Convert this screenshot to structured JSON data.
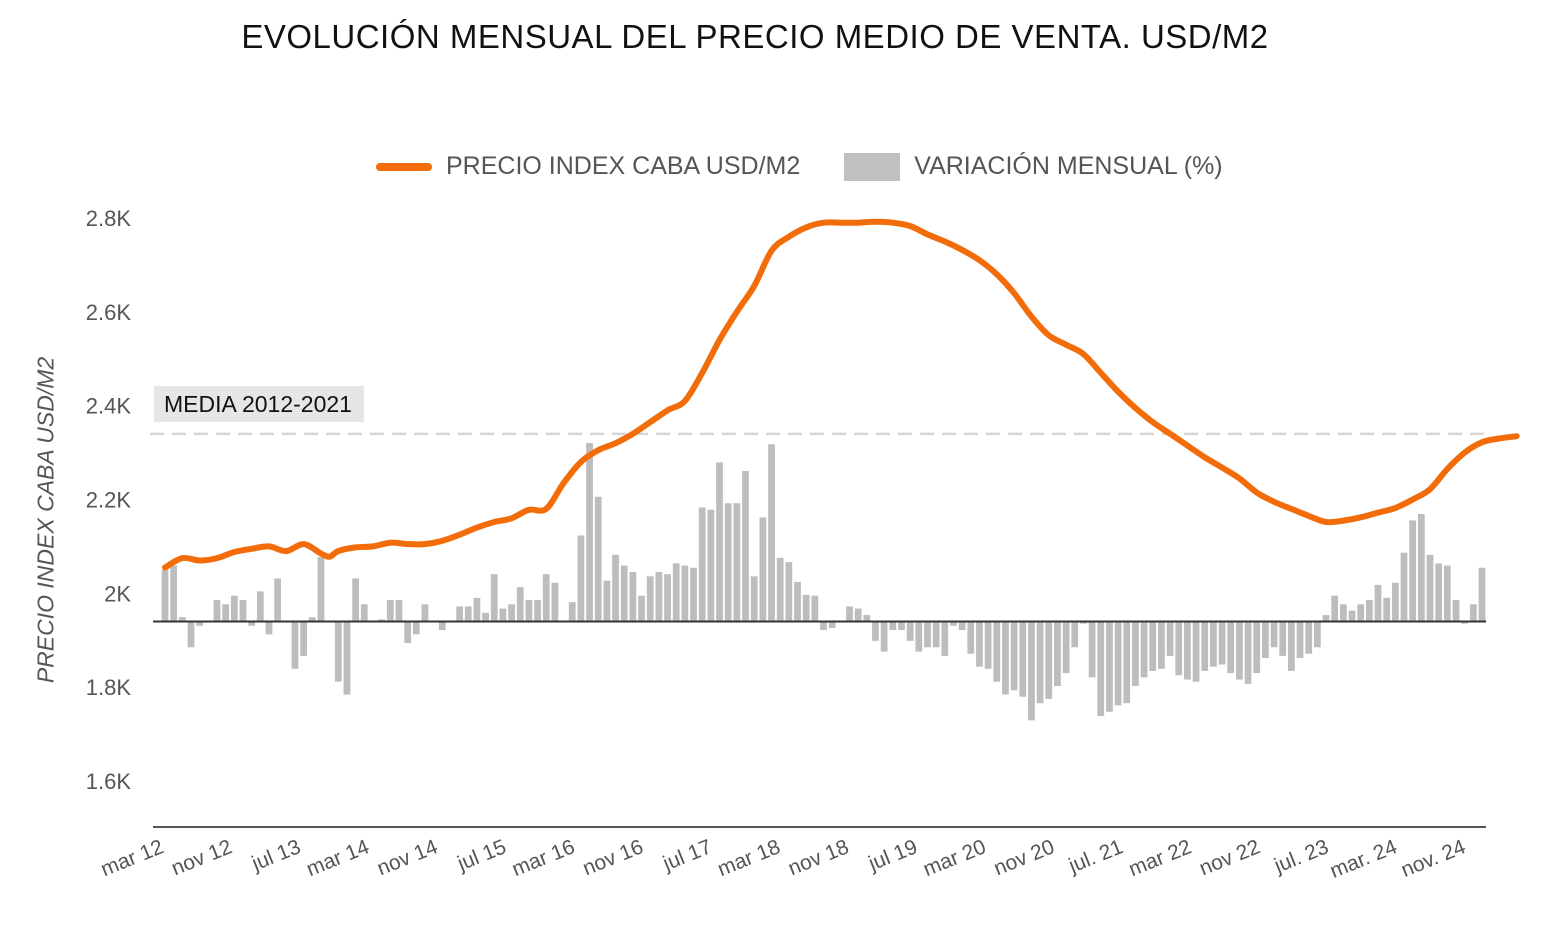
{
  "title": "EVOLUCIÓN MENSUAL DEL PRECIO MEDIO DE VENTA. USD/M2",
  "legend": {
    "line_label": "PRECIO INDEX CABA USD/M2",
    "bar_label": "VARIACIÓN MENSUAL (%)"
  },
  "reference_label": "MEDIA 2012-2021",
  "chart_data": {
    "type": "line+bar",
    "title": "EVOLUCIÓN MENSUAL DEL PRECIO MEDIO DE VENTA. USD/M2",
    "ylabel": "PRECIO INDEX CABA USD/M2",
    "ylim": [
      1500,
      2800
    ],
    "yticks": [
      {
        "value": 1600,
        "label": "1.6K"
      },
      {
        "value": 1800,
        "label": "1.8K"
      },
      {
        "value": 2000,
        "label": "2K"
      },
      {
        "value": 2200,
        "label": "2.2K"
      },
      {
        "value": 2400,
        "label": "2.4K"
      },
      {
        "value": 2600,
        "label": "2.6K"
      },
      {
        "value": 2800,
        "label": "2.8K"
      }
    ],
    "xtick_labels": [
      "mar 12",
      "nov 12",
      "jul 13",
      "mar 14",
      "nov 14",
      "jul 15",
      "mar 16",
      "nov 16",
      "jul 17",
      "mar 18",
      "nov 18",
      "jul 19",
      "mar 20",
      "nov 20",
      "jul. 21",
      "mar 22",
      "nov 22",
      "jul. 23",
      "mar. 24",
      "nov. 24"
    ],
    "reference_line": {
      "label": "MEDIA 2012-2021",
      "value": 2340
    },
    "bar_baseline": 1940,
    "line_anchors": [
      [
        0,
        2055
      ],
      [
        2,
        2075
      ],
      [
        4,
        2070
      ],
      [
        6,
        2075
      ],
      [
        8,
        2088
      ],
      [
        10,
        2095
      ],
      [
        12,
        2100
      ],
      [
        14,
        2090
      ],
      [
        16,
        2105
      ],
      [
        18,
        2085
      ],
      [
        19,
        2078
      ],
      [
        20,
        2090
      ],
      [
        22,
        2098
      ],
      [
        24,
        2100
      ],
      [
        26,
        2108
      ],
      [
        28,
        2105
      ],
      [
        30,
        2105
      ],
      [
        32,
        2112
      ],
      [
        34,
        2125
      ],
      [
        36,
        2140
      ],
      [
        38,
        2152
      ],
      [
        40,
        2160
      ],
      [
        42,
        2178
      ],
      [
        44,
        2180
      ],
      [
        46,
        2235
      ],
      [
        48,
        2280
      ],
      [
        50,
        2305
      ],
      [
        52,
        2320
      ],
      [
        54,
        2340
      ],
      [
        56,
        2365
      ],
      [
        58,
        2390
      ],
      [
        60,
        2410
      ],
      [
        62,
        2470
      ],
      [
        64,
        2540
      ],
      [
        66,
        2600
      ],
      [
        68,
        2655
      ],
      [
        70,
        2730
      ],
      [
        72,
        2760
      ],
      [
        74,
        2780
      ],
      [
        76,
        2790
      ],
      [
        78,
        2790
      ],
      [
        80,
        2790
      ],
      [
        82,
        2792
      ],
      [
        84,
        2790
      ],
      [
        86,
        2783
      ],
      [
        88,
        2765
      ],
      [
        90,
        2750
      ],
      [
        92,
        2732
      ],
      [
        94,
        2710
      ],
      [
        96,
        2680
      ],
      [
        98,
        2640
      ],
      [
        100,
        2590
      ],
      [
        102,
        2550
      ],
      [
        104,
        2530
      ],
      [
        106,
        2510
      ],
      [
        108,
        2470
      ],
      [
        110,
        2430
      ],
      [
        112,
        2395
      ],
      [
        114,
        2365
      ],
      [
        116,
        2340
      ],
      [
        118,
        2315
      ],
      [
        120,
        2290
      ],
      [
        122,
        2268
      ],
      [
        124,
        2245
      ],
      [
        126,
        2215
      ],
      [
        128,
        2195
      ],
      [
        130,
        2180
      ],
      [
        132,
        2165
      ],
      [
        134,
        2152
      ],
      [
        136,
        2155
      ],
      [
        138,
        2162
      ],
      [
        140,
        2172
      ],
      [
        142,
        2182
      ],
      [
        144,
        2200
      ],
      [
        146,
        2222
      ],
      [
        148,
        2265
      ],
      [
        150,
        2300
      ],
      [
        152,
        2322
      ],
      [
        154,
        2330
      ],
      [
        156,
        2335
      ]
    ],
    "bar_variation_index": [
      1.2,
      1.3,
      0.1,
      -0.6,
      -0.1,
      0,
      0.5,
      0.4,
      0.6,
      0.5,
      -0.1,
      0.7,
      -0.3,
      1,
      0,
      -1.1,
      -0.8,
      0.1,
      1.5,
      0,
      -1.4,
      -1.7,
      1,
      0.4,
      0,
      0.05,
      0.5,
      0.5,
      -0.5,
      -0.3,
      0.4,
      0,
      -0.2,
      0,
      0.35,
      0.35,
      0.55,
      0.2,
      1.1,
      0.3,
      0.4,
      0.8,
      0.5,
      0.5,
      1.1,
      0.9,
      0,
      0.45,
      2,
      4.15,
      2.9,
      0.95,
      1.55,
      1.3,
      1.15,
      0.6,
      1.05,
      1.15,
      1.1,
      1.35,
      1.3,
      1.25,
      2.65,
      2.6,
      3.7,
      2.75,
      2.75,
      3.5,
      1.05,
      2.42,
      4.12,
      1.48,
      1.38,
      0.92,
      0.62,
      0.6,
      -0.2,
      -0.15,
      0.02,
      0.35,
      0.3,
      0.15,
      -0.45,
      -0.7,
      -0.2,
      -0.2,
      -0.45,
      -0.7,
      -0.6,
      -0.6,
      -0.8,
      -0.1,
      -0.2,
      -0.75,
      -1.05,
      -1.1,
      -1.4,
      -1.7,
      -1.6,
      -1.75,
      -2.3,
      -1.9,
      -1.8,
      -1.5,
      -1.2,
      -0.6,
      -0.05,
      -1.3,
      -2.2,
      -2.1,
      -1.95,
      -1.9,
      -1.5,
      -1.3,
      -1.15,
      -1.1,
      -0.8,
      -1.25,
      -1.35,
      -1.4,
      -1.15,
      -1.05,
      -1,
      -1.2,
      -1.35,
      -1.45,
      -1.2,
      -0.85,
      -0.6,
      -0.8,
      -1.15,
      -0.85,
      -0.75,
      -0.6,
      0.15,
      0.6,
      0.4,
      0.25,
      0.4,
      0.5,
      0.85,
      0.55,
      0.9,
      1.6,
      2.35,
      2.5,
      1.55,
      1.35,
      1.3,
      0.5,
      -0.05,
      0.4,
      1.25
    ]
  }
}
